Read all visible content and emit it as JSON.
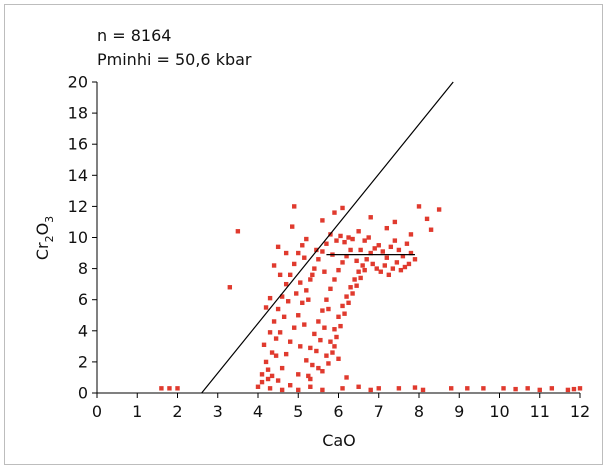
{
  "chart_data": {
    "type": "scatter",
    "annotations": [
      "n = 8164",
      "Pminhi = 50,6 kbar"
    ],
    "xlabel": "CaO",
    "ylabel": {
      "base": "Cr",
      "sub1": "2",
      "mid": "O",
      "sub2": "3"
    },
    "xlim": [
      0,
      12
    ],
    "ylim": [
      0,
      20
    ],
    "x_ticks": [
      "0",
      "1",
      "2",
      "3",
      "4",
      "5",
      "6",
      "7",
      "8",
      "9",
      "10",
      "11",
      "12"
    ],
    "y_ticks": [
      "0",
      "2",
      "4",
      "6",
      "8",
      "10",
      "12",
      "14",
      "16",
      "18",
      "20"
    ],
    "marker_color": "#e03a2e",
    "lines": [
      {
        "name": "diagonal-line",
        "x": [
          2.6,
          8.85
        ],
        "y": [
          0,
          20
        ]
      },
      {
        "name": "horizontal-line",
        "x": [
          5.7,
          7.9
        ],
        "y": [
          8.9,
          8.9
        ]
      }
    ],
    "series": [
      {
        "points": [
          [
            1.6,
            0.3
          ],
          [
            1.8,
            0.3
          ],
          [
            2.0,
            0.3
          ],
          [
            3.3,
            6.8
          ],
          [
            3.5,
            10.4
          ],
          [
            4.9,
            12.0
          ],
          [
            4.5,
            9.4
          ],
          [
            4.4,
            8.2
          ],
          [
            4.2,
            5.5
          ],
          [
            4.3,
            6.1
          ],
          [
            4.0,
            0.4
          ],
          [
            4.1,
            1.2
          ],
          [
            4.2,
            2.0
          ],
          [
            4.15,
            3.1
          ],
          [
            4.3,
            3.9
          ],
          [
            4.4,
            4.6
          ],
          [
            4.5,
            5.4
          ],
          [
            4.6,
            6.2
          ],
          [
            4.7,
            7.0
          ],
          [
            4.8,
            7.6
          ],
          [
            4.9,
            8.3
          ],
          [
            5.0,
            9.0
          ],
          [
            5.1,
            9.5
          ],
          [
            5.2,
            9.9
          ],
          [
            4.5,
            0.8
          ],
          [
            4.6,
            1.6
          ],
          [
            4.7,
            2.5
          ],
          [
            4.8,
            3.3
          ],
          [
            4.9,
            4.2
          ],
          [
            5.0,
            5.0
          ],
          [
            5.1,
            5.8
          ],
          [
            5.2,
            6.6
          ],
          [
            5.3,
            7.3
          ],
          [
            5.4,
            8.0
          ],
          [
            5.5,
            8.6
          ],
          [
            5.6,
            9.1
          ],
          [
            5.7,
            9.6
          ],
          [
            5.8,
            10.2
          ],
          [
            4.8,
            0.5
          ],
          [
            5.0,
            1.2
          ],
          [
            5.2,
            2.1
          ],
          [
            5.3,
            2.9
          ],
          [
            5.4,
            3.8
          ],
          [
            5.5,
            4.6
          ],
          [
            5.6,
            5.3
          ],
          [
            5.7,
            6.0
          ],
          [
            5.8,
            6.7
          ],
          [
            5.9,
            7.3
          ],
          [
            6.0,
            7.9
          ],
          [
            6.1,
            8.4
          ],
          [
            6.2,
            8.8
          ],
          [
            6.3,
            9.2
          ],
          [
            5.3,
            0.9
          ],
          [
            5.5,
            1.6
          ],
          [
            5.7,
            2.4
          ],
          [
            5.8,
            3.3
          ],
          [
            5.9,
            4.1
          ],
          [
            6.0,
            4.9
          ],
          [
            6.1,
            5.6
          ],
          [
            6.2,
            6.2
          ],
          [
            6.3,
            6.8
          ],
          [
            6.4,
            7.3
          ],
          [
            6.5,
            7.8
          ],
          [
            6.6,
            8.2
          ],
          [
            6.7,
            8.6
          ],
          [
            6.8,
            9.0
          ],
          [
            6.9,
            9.3
          ],
          [
            7.0,
            9.5
          ],
          [
            7.1,
            9.1
          ],
          [
            7.2,
            8.7
          ],
          [
            7.3,
            9.4
          ],
          [
            7.4,
            9.8
          ],
          [
            7.5,
            9.2
          ],
          [
            7.6,
            8.8
          ],
          [
            7.7,
            9.6
          ],
          [
            7.8,
            9.0
          ],
          [
            7.9,
            8.6
          ],
          [
            7.2,
            10.6
          ],
          [
            7.8,
            10.2
          ],
          [
            8.0,
            12.0
          ],
          [
            8.2,
            11.2
          ],
          [
            8.5,
            11.8
          ],
          [
            8.3,
            10.5
          ],
          [
            7.4,
            11.0
          ],
          [
            6.8,
            11.3
          ],
          [
            6.5,
            10.4
          ],
          [
            5.9,
            11.6
          ],
          [
            6.1,
            11.9
          ],
          [
            5.6,
            11.1
          ],
          [
            4.7,
            9.0
          ],
          [
            4.55,
            7.6
          ],
          [
            4.85,
            10.7
          ],
          [
            5.9,
            3.0
          ],
          [
            6.0,
            2.2
          ],
          [
            5.6,
            1.4
          ],
          [
            5.3,
            0.4
          ],
          [
            6.2,
            1.0
          ],
          [
            6.1,
            0.3
          ],
          [
            6.5,
            0.4
          ],
          [
            7.0,
            0.3
          ],
          [
            7.5,
            0.3
          ],
          [
            7.9,
            0.35
          ],
          [
            8.1,
            0.2
          ],
          [
            8.8,
            0.3
          ],
          [
            9.2,
            0.3
          ],
          [
            9.6,
            0.3
          ],
          [
            10.1,
            0.3
          ],
          [
            10.4,
            0.25
          ],
          [
            10.7,
            0.3
          ],
          [
            11.0,
            0.2
          ],
          [
            11.3,
            0.3
          ],
          [
            11.7,
            0.2
          ],
          [
            11.85,
            0.25
          ],
          [
            12.0,
            0.3
          ],
          [
            4.3,
            0.3
          ],
          [
            4.6,
            0.2
          ],
          [
            5.0,
            0.2
          ],
          [
            5.6,
            0.2
          ],
          [
            6.8,
            0.2
          ],
          [
            4.1,
            0.7
          ],
          [
            4.25,
            1.5
          ],
          [
            4.35,
            2.6
          ],
          [
            4.45,
            3.5
          ],
          [
            5.05,
            3.0
          ],
          [
            5.15,
            4.4
          ],
          [
            5.25,
            6.0
          ],
          [
            5.35,
            7.6
          ],
          [
            5.45,
            9.2
          ],
          [
            5.65,
            7.8
          ],
          [
            5.75,
            5.4
          ],
          [
            5.85,
            8.9
          ],
          [
            5.95,
            9.8
          ],
          [
            6.05,
            10.1
          ],
          [
            6.15,
            9.7
          ],
          [
            6.25,
            10.0
          ],
          [
            6.35,
            9.9
          ],
          [
            6.45,
            8.5
          ],
          [
            6.55,
            9.2
          ],
          [
            6.65,
            9.8
          ],
          [
            6.75,
            10.0
          ],
          [
            6.85,
            8.3
          ],
          [
            6.95,
            8.0
          ],
          [
            7.05,
            7.8
          ],
          [
            7.15,
            8.2
          ],
          [
            7.25,
            7.6
          ],
          [
            7.35,
            8.0
          ],
          [
            7.45,
            8.4
          ],
          [
            7.55,
            7.9
          ],
          [
            7.65,
            8.1
          ],
          [
            7.75,
            8.3
          ],
          [
            4.95,
            6.4
          ],
          [
            5.05,
            7.1
          ],
          [
            5.15,
            8.7
          ],
          [
            4.75,
            5.9
          ],
          [
            4.65,
            4.9
          ],
          [
            4.55,
            3.9
          ],
          [
            4.45,
            2.4
          ],
          [
            4.35,
            1.1
          ],
          [
            4.25,
            0.9
          ],
          [
            5.45,
            2.7
          ],
          [
            5.55,
            3.4
          ],
          [
            5.65,
            4.2
          ],
          [
            5.35,
            1.8
          ],
          [
            5.25,
            1.1
          ],
          [
            5.75,
            1.9
          ],
          [
            5.85,
            2.6
          ],
          [
            5.95,
            3.6
          ],
          [
            6.05,
            4.3
          ],
          [
            6.15,
            5.1
          ],
          [
            6.25,
            5.8
          ],
          [
            6.35,
            6.4
          ],
          [
            6.45,
            6.9
          ],
          [
            6.55,
            7.4
          ],
          [
            6.65,
            7.9
          ]
        ]
      }
    ]
  }
}
